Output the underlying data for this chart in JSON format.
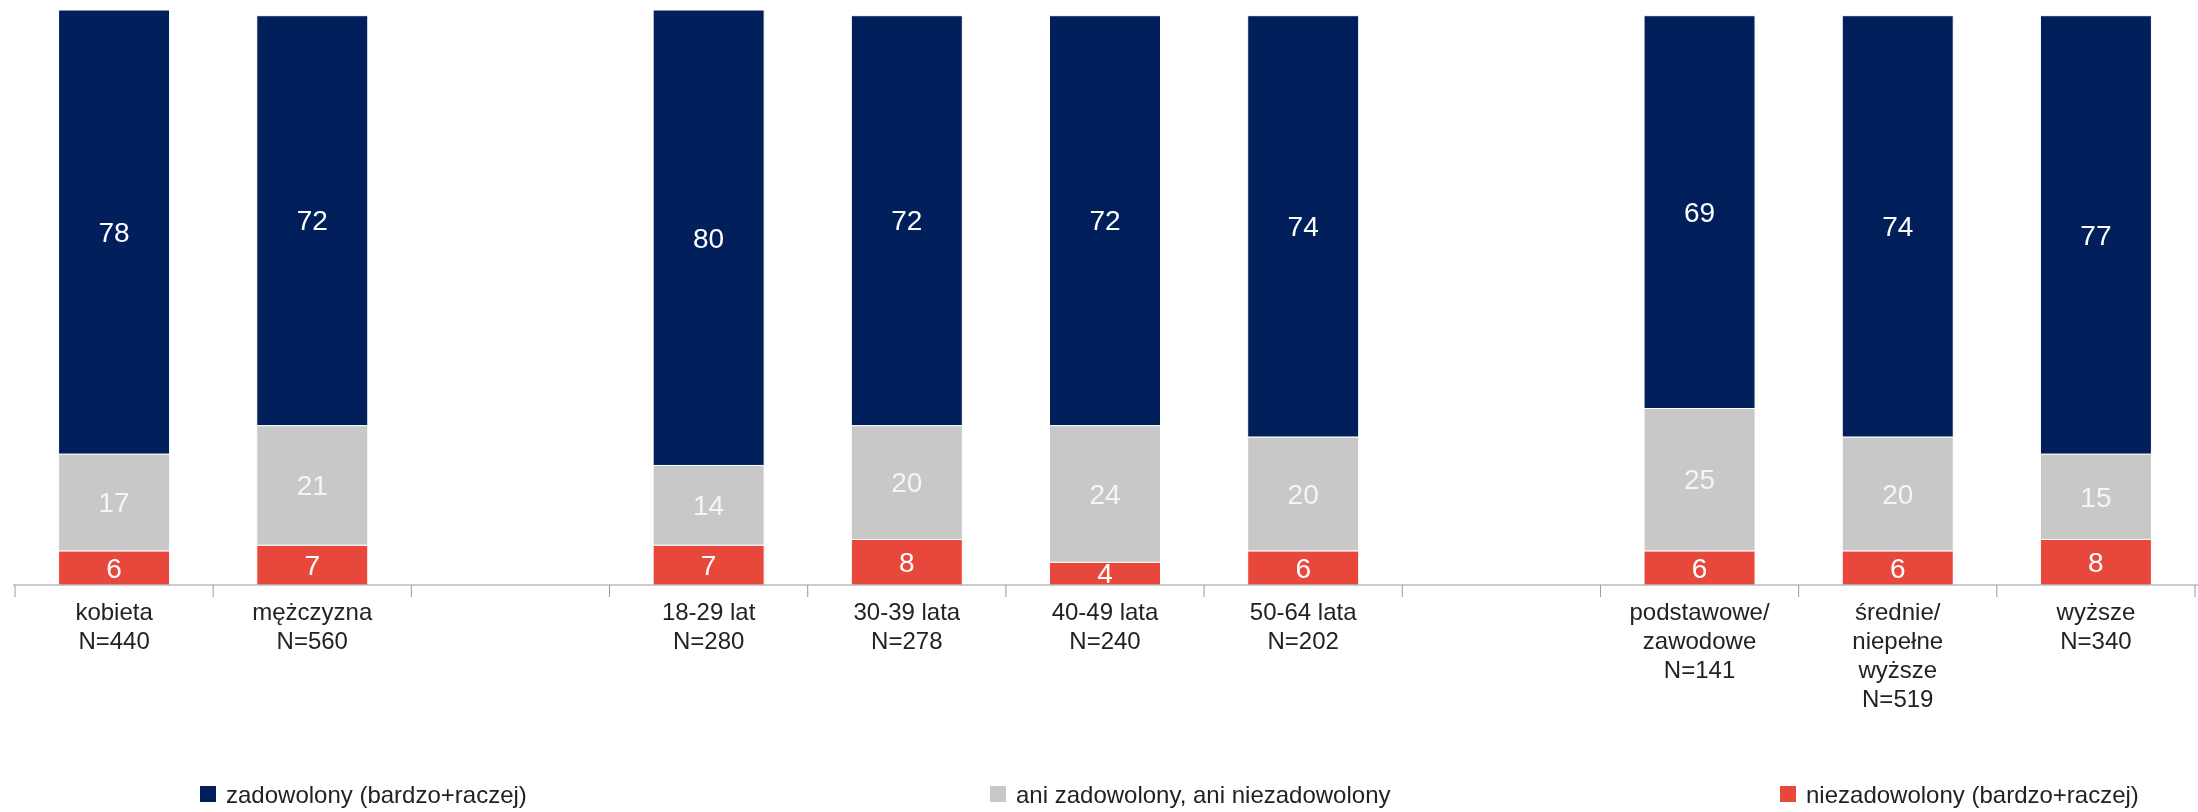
{
  "chart_data": {
    "type": "bar",
    "stacked": true,
    "data_labels": true,
    "legend": "bottom",
    "categories": [
      "kobieta\nN=440",
      "mężczyzna\nN=560",
      null,
      "18-29 lat\nN=280",
      "30-39 lata\nN=278",
      "40-49 lata\nN=240",
      "50-64 lata\nN=202",
      null,
      "podstawowe/\nzawodowe\nN=141",
      "średnie/\nniepełne\nwyższe\nN=519",
      "wyższe\nN=340"
    ],
    "series": [
      {
        "name": "niezadowolony (bardzo+raczej)",
        "color": "#e8473b",
        "values": [
          6,
          7,
          null,
          7,
          8,
          4,
          6,
          null,
          6,
          6,
          8
        ]
      },
      {
        "name": "ani zadowolony, ani niezadowolony",
        "color": "#c8c8c8",
        "values": [
          17,
          21,
          null,
          14,
          20,
          24,
          20,
          null,
          25,
          20,
          15
        ]
      },
      {
        "name": "zadowolony (bardzo+raczej)",
        "color": "#001f5b",
        "values": [
          78,
          72,
          null,
          80,
          72,
          72,
          74,
          null,
          69,
          74,
          77
        ]
      }
    ]
  }
}
